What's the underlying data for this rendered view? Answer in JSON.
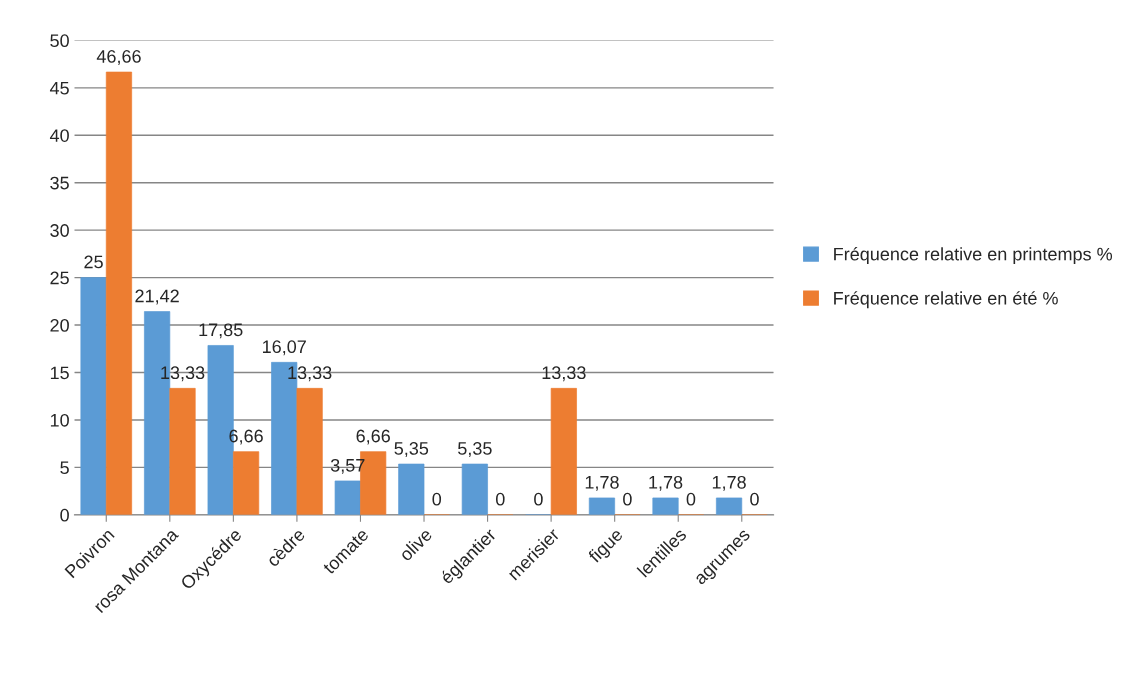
{
  "chart_data": {
    "type": "bar",
    "categories": [
      "Poivron",
      "rosa Montana",
      "Oxycédre",
      "cèdre",
      "tomate",
      "olive",
      "églantier",
      "merisier",
      "figue",
      "lentilles",
      "agrumes"
    ],
    "series": [
      {
        "name": "Fréquence relative en printemps %",
        "color": "#5b9bd5",
        "values": [
          25,
          21.42,
          17.85,
          16.07,
          3.57,
          5.35,
          5.35,
          0,
          1.78,
          1.78,
          1.78
        ],
        "value_labels": [
          "25",
          "21,42",
          "17,85",
          "16,07",
          "3,57",
          "5,35",
          "5,35",
          "0",
          "1,78",
          "1,78",
          "1,78"
        ]
      },
      {
        "name": "Fréquence relative en été %",
        "color": "#ed7d31",
        "values": [
          46.66,
          13.33,
          6.66,
          13.33,
          6.66,
          0,
          0,
          13.33,
          0,
          0,
          0
        ],
        "value_labels": [
          "46,66",
          "13,33",
          "6,66",
          "13,33",
          "6,66",
          "0",
          "0",
          "13,33",
          "0",
          "0",
          "0"
        ]
      }
    ],
    "ylim": [
      0,
      50
    ],
    "yticks": [
      0,
      5,
      10,
      15,
      20,
      25,
      30,
      35,
      40,
      45,
      50
    ],
    "grid": "y",
    "legend": "right"
  }
}
